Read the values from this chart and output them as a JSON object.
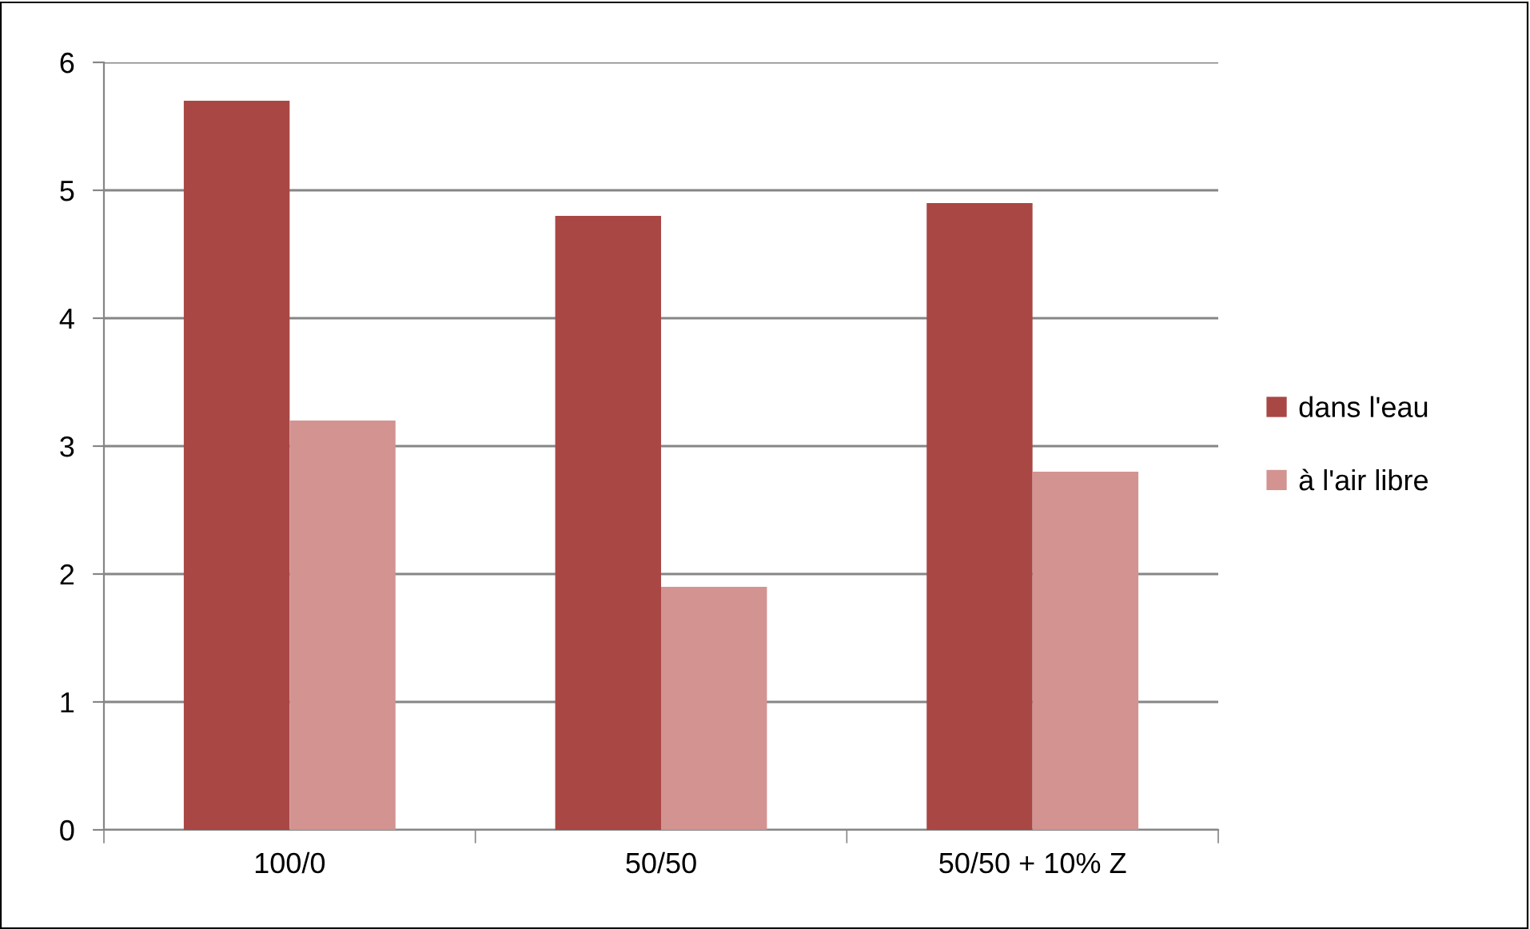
{
  "chart_data": {
    "type": "bar",
    "categories": [
      "100/0",
      "50/50",
      "50/50 + 10% Z"
    ],
    "series": [
      {
        "name": "dans l'eau",
        "color": "#a94744",
        "values": [
          5.7,
          4.8,
          4.9
        ]
      },
      {
        "name": "à l'air libre",
        "color": "#d39391",
        "values": [
          3.2,
          1.9,
          2.8
        ]
      }
    ],
    "ylim": [
      0,
      6
    ],
    "yticks": [
      0,
      1,
      2,
      3,
      4,
      5,
      6
    ],
    "grid": "y",
    "legend": "right"
  }
}
